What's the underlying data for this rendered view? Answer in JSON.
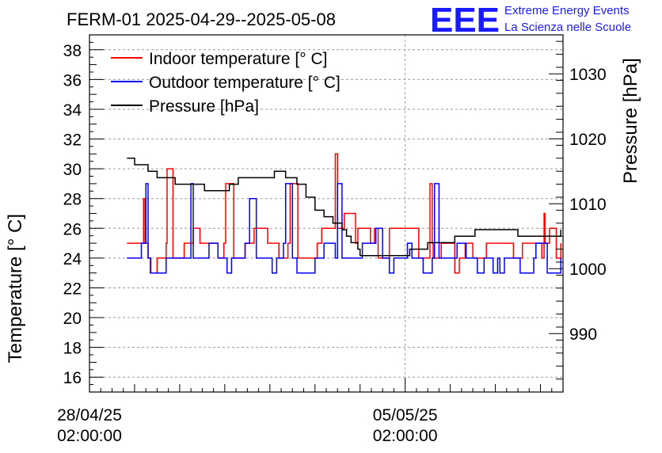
{
  "chart_data": {
    "type": "line",
    "title": "FERM-01 2025-04-29--2025-05-08",
    "logo": {
      "text": "EEE",
      "line1": "Extreme Energy Events",
      "line2": "La Scienza nelle Scuole"
    },
    "ylabel": "Temperature [° C]",
    "y2label": "Pressure [hPa]",
    "ylim": [
      15,
      39
    ],
    "y2lim": [
      981,
      1036
    ],
    "yticks": [
      "16",
      "18",
      "20",
      "22",
      "24",
      "26",
      "28",
      "30",
      "32",
      "34",
      "36",
      "38"
    ],
    "y2ticks": [
      "990",
      "1000",
      "1010",
      "1020",
      "1030"
    ],
    "xlim": [
      0,
      10.5
    ],
    "xticks": [
      {
        "x": 0,
        "line1": "28/04/25",
        "line2": "02:00:00"
      },
      {
        "x": 7,
        "line1": "05/05/25",
        "line2": "02:00:00"
      }
    ],
    "grid": true,
    "legend_position": "top-left",
    "series": [
      {
        "name": "Indoor temperature [° C]",
        "color": "#ff0000",
        "axis": "left",
        "x": [
          0.83,
          0.95,
          1.15,
          1.2,
          1.23,
          1.3,
          1.36,
          1.5,
          1.7,
          1.72,
          1.85,
          2.07,
          2.1,
          2.2,
          2.3,
          2.35,
          2.45,
          2.6,
          2.75,
          2.85,
          2.98,
          3.02,
          3.2,
          3.25,
          3.45,
          3.65,
          3.72,
          3.95,
          4.06,
          4.2,
          4.35,
          4.4,
          4.45,
          4.62,
          4.8,
          5.05,
          5.15,
          5.25,
          5.4,
          5.45,
          5.5,
          5.65,
          5.85,
          5.9,
          5.95,
          6.2,
          6.23,
          6.32,
          6.4,
          6.5,
          6.65,
          6.7,
          6.82,
          7.05,
          7.3,
          7.5,
          7.55,
          7.6,
          7.62,
          7.8,
          7.95,
          8.1,
          8.2,
          8.3,
          8.33,
          8.45,
          8.5,
          8.62,
          8.8,
          8.85,
          9.15,
          9.4,
          9.5,
          9.6,
          9.8,
          10.0,
          10.03,
          10.08,
          10.1,
          10.2,
          10.25,
          10.35,
          10.45
        ],
        "y": [
          25,
          25,
          25,
          28,
          25,
          24,
          23,
          24,
          25,
          30,
          24,
          24,
          25,
          25,
          26,
          26,
          25,
          25,
          25,
          24,
          25,
          29,
          24,
          24,
          25,
          26,
          26,
          25,
          25,
          24,
          24,
          25,
          29,
          24,
          24,
          25,
          26,
          26,
          26,
          31,
          26,
          27,
          27,
          25,
          26,
          26,
          25,
          26,
          24,
          24,
          26,
          26,
          26,
          26,
          24,
          24,
          29,
          25,
          24,
          25,
          25,
          23,
          24,
          24,
          25,
          25,
          24,
          24,
          25,
          25,
          25,
          24,
          24,
          25,
          25,
          25,
          24,
          27,
          25,
          26,
          26,
          24,
          25
        ]
      },
      {
        "name": "Outdoor temperature [° C]",
        "color": "#0000ff",
        "axis": "left",
        "x": [
          0.83,
          1.05,
          1.15,
          1.25,
          1.3,
          1.35,
          1.5,
          1.7,
          2.0,
          2.15,
          2.25,
          2.3,
          2.45,
          2.65,
          2.85,
          3.05,
          3.15,
          3.25,
          3.45,
          3.55,
          3.7,
          4.05,
          4.15,
          4.3,
          4.35,
          4.5,
          4.6,
          4.75,
          5.0,
          5.2,
          5.3,
          5.45,
          5.5,
          5.6,
          5.75,
          5.9,
          6.05,
          6.25,
          6.35,
          6.5,
          6.65,
          6.75,
          6.85,
          7.05,
          7.15,
          7.4,
          7.6,
          7.65,
          7.75,
          7.95,
          8.15,
          8.35,
          8.45,
          8.6,
          8.75,
          8.85,
          8.95,
          9.05,
          9.1,
          9.2,
          9.4,
          9.55,
          9.7,
          9.85,
          9.9,
          10.0,
          10.15,
          10.35,
          10.45
        ],
        "y": [
          24,
          24,
          25,
          29,
          24,
          23,
          23,
          24,
          24,
          24,
          29,
          24,
          24,
          25,
          24,
          23,
          24,
          24,
          25,
          28,
          24,
          23,
          24,
          25,
          29,
          24,
          23,
          23,
          24,
          25,
          25,
          24,
          29,
          24,
          24,
          24,
          25,
          25,
          26,
          24,
          23,
          24,
          24,
          25,
          24,
          23,
          24,
          29,
          24,
          24,
          25,
          24,
          24,
          23,
          24,
          24,
          23,
          24,
          23,
          24,
          24,
          23,
          23,
          24,
          25,
          25,
          23,
          23,
          24
        ]
      },
      {
        "name": "Pressure [hPa]",
        "color": "#000000",
        "axis": "right",
        "x": [
          0.83,
          1.0,
          1.15,
          1.3,
          1.5,
          1.7,
          1.9,
          2.1,
          2.3,
          2.55,
          2.8,
          3.1,
          3.3,
          3.6,
          3.85,
          4.1,
          4.35,
          4.6,
          4.8,
          5.0,
          5.2,
          5.4,
          5.6,
          5.7,
          5.8,
          5.95,
          6.0,
          6.1,
          6.3,
          6.5,
          6.7,
          6.9,
          7.1,
          7.3,
          7.5,
          7.7,
          7.9,
          8.1,
          8.3,
          8.55,
          8.8,
          9.05,
          9.3,
          9.5,
          9.7,
          9.9,
          10.05,
          10.2,
          10.35,
          10.45
        ],
        "y": [
          1017,
          1016,
          1016,
          1015,
          1014,
          1014,
          1013,
          1013,
          1013,
          1012,
          1012,
          1013,
          1014,
          1014,
          1014,
          1015,
          1014,
          1013,
          1011,
          1009,
          1008,
          1007,
          1006,
          1005,
          1004,
          1003,
          1002,
          1002,
          1002,
          1002,
          1002,
          1002,
          1003,
          1003,
          1004,
          1004,
          1004,
          1005,
          1005,
          1006,
          1006,
          1006,
          1006,
          1005,
          1005,
          1005,
          1005,
          1005,
          1005,
          1006
        ]
      }
    ]
  }
}
